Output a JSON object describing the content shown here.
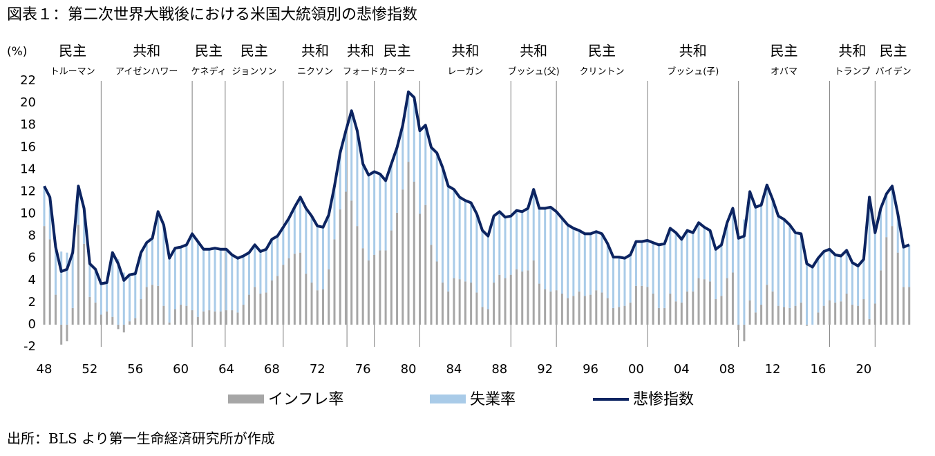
{
  "chart_data": {
    "type": "misery",
    "title": "図表１：第二次世界大戦後における米国大統領別の悲惨指数",
    "y_unit": "(%)",
    "source": "出所：BLS より第一生命経済研究所が作成",
    "xlim": [
      1948,
      2024.2
    ],
    "xticks": [
      {
        "value": 1948,
        "label": "48"
      },
      {
        "value": 1952,
        "label": "52"
      },
      {
        "value": 1956,
        "label": "56"
      },
      {
        "value": 1960,
        "label": "60"
      },
      {
        "value": 1964,
        "label": "64"
      },
      {
        "value": 1968,
        "label": "68"
      },
      {
        "value": 1972,
        "label": "72"
      },
      {
        "value": 1976,
        "label": "76"
      },
      {
        "value": 1980,
        "label": "80"
      },
      {
        "value": 1984,
        "label": "84"
      },
      {
        "value": 1988,
        "label": "88"
      },
      {
        "value": 1992,
        "label": "92"
      },
      {
        "value": 1996,
        "label": "96"
      },
      {
        "value": 2000,
        "label": "00"
      },
      {
        "value": 2004,
        "label": "04"
      },
      {
        "value": 2008,
        "label": "08"
      },
      {
        "value": 2012,
        "label": "12"
      },
      {
        "value": 2016,
        "label": "16"
      },
      {
        "value": 2020,
        "label": "20"
      }
    ],
    "ylim": [
      -2,
      22
    ],
    "yticks": [
      -2,
      0,
      2,
      4,
      6,
      8,
      10,
      12,
      14,
      16,
      18,
      20,
      22
    ],
    "presidents": [
      {
        "party": "民主",
        "name": "トルーマン",
        "start": 1948
      },
      {
        "party": "共和",
        "name": "アイゼンハワー",
        "start": 1953
      },
      {
        "party": "民主",
        "name": "ケネディ",
        "start": 1961
      },
      {
        "party": "民主",
        "name": "ジョンソン",
        "start": 1963.9
      },
      {
        "party": "共和",
        "name": "ニクソン",
        "start": 1969
      },
      {
        "party": "共和",
        "name": "フォード",
        "start": 1974.6
      },
      {
        "party": "民主",
        "name": "カーター",
        "start": 1977
      },
      {
        "party": "共和",
        "name": "レーガン",
        "start": 1981
      },
      {
        "party": "共和",
        "name": "ブッシュ(父)",
        "start": 1989
      },
      {
        "party": "民主",
        "name": "クリントン",
        "start": 1993
      },
      {
        "party": "共和",
        "name": "ブッシュ(子)",
        "start": 2001
      },
      {
        "party": "民主",
        "name": "オバマ",
        "start": 2009
      },
      {
        "party": "共和",
        "name": "トランプ",
        "start": 2017
      },
      {
        "party": "民主",
        "name": "バイデン",
        "start": 2021
      }
    ],
    "x": [
      1948,
      1948.5,
      1949,
      1949.5,
      1950,
      1950.5,
      1951,
      1951.5,
      1952,
      1952.5,
      1953,
      1953.5,
      1954,
      1954.5,
      1955,
      1955.5,
      1956,
      1956.5,
      1957,
      1957.5,
      1958,
      1958.5,
      1959,
      1959.5,
      1960,
      1960.5,
      1961,
      1961.5,
      1962,
      1962.5,
      1963,
      1963.5,
      1964,
      1964.5,
      1965,
      1965.5,
      1966,
      1966.5,
      1967,
      1967.5,
      1968,
      1968.5,
      1969,
      1969.5,
      1970,
      1970.5,
      1971,
      1971.5,
      1972,
      1972.5,
      1973,
      1973.5,
      1974,
      1974.5,
      1975,
      1975.5,
      1976,
      1976.5,
      1977,
      1977.5,
      1978,
      1978.5,
      1979,
      1979.5,
      1980,
      1980.5,
      1981,
      1981.5,
      1982,
      1982.5,
      1983,
      1983.5,
      1984,
      1984.5,
      1985,
      1985.5,
      1986,
      1986.5,
      1987,
      1987.5,
      1988,
      1988.5,
      1989,
      1989.5,
      1990,
      1990.5,
      1991,
      1991.5,
      1992,
      1992.5,
      1993,
      1993.5,
      1994,
      1994.5,
      1995,
      1995.5,
      1996,
      1996.5,
      1997,
      1997.5,
      1998,
      1998.5,
      1999,
      1999.5,
      2000,
      2000.5,
      2001,
      2001.5,
      2002,
      2002.5,
      2003,
      2003.5,
      2004,
      2004.5,
      2005,
      2005.5,
      2006,
      2006.5,
      2007,
      2007.5,
      2008,
      2008.5,
      2009,
      2009.5,
      2010,
      2010.5,
      2011,
      2011.5,
      2012,
      2012.5,
      2013,
      2013.5,
      2014,
      2014.5,
      2015,
      2015.5,
      2016,
      2016.5,
      2017,
      2017.5,
      2018,
      2018.5,
      2019,
      2019.5,
      2020,
      2020.5,
      2021,
      2021.5,
      2022,
      2022.5,
      2023,
      2023.5,
      2024
    ],
    "series": [
      {
        "name": "インフレ率",
        "color": "#a6a6a6",
        "values": [
          8.9,
          7.7,
          2.7,
          -1.8,
          -1.5,
          1.5,
          9.0,
          7.3,
          2.5,
          2.0,
          0.9,
          1.2,
          0.7,
          -0.4,
          -0.7,
          0.3,
          0.6,
          2.3,
          3.4,
          3.6,
          3.5,
          1.7,
          0.2,
          1.4,
          1.8,
          1.7,
          1.3,
          0.7,
          1.2,
          1.3,
          1.2,
          1.2,
          1.3,
          1.3,
          1.1,
          1.8,
          2.7,
          3.4,
          2.8,
          2.9,
          4.0,
          4.4,
          5.4,
          6.0,
          6.4,
          6.5,
          4.6,
          3.8,
          3.1,
          3.2,
          5.0,
          7.7,
          10.4,
          12.0,
          11.2,
          8.9,
          6.9,
          5.8,
          6.3,
          6.7,
          6.7,
          8.5,
          10.1,
          12.2,
          14.7,
          12.9,
          10.0,
          10.8,
          7.2,
          5.7,
          3.8,
          3.0,
          4.2,
          4.1,
          3.9,
          3.8,
          2.9,
          1.6,
          1.4,
          3.8,
          4.5,
          4.2,
          4.5,
          5.0,
          4.8,
          4.9,
          5.8,
          3.7,
          3.2,
          3.0,
          3.1,
          2.8,
          2.4,
          2.6,
          3.0,
          2.6,
          2.7,
          3.1,
          2.9,
          2.4,
          1.5,
          1.6,
          1.7,
          2.0,
          3.5,
          3.5,
          3.4,
          2.8,
          1.5,
          1.5,
          2.8,
          2.1,
          2.0,
          3.0,
          3.0,
          4.2,
          4.1,
          3.9,
          2.3,
          2.6,
          4.2,
          4.7,
          -0.5,
          -1.5,
          2.2,
          1.1,
          1.8,
          3.6,
          3.0,
          1.7,
          1.6,
          1.5,
          1.7,
          2.0,
          -0.1,
          0.0,
          1.1,
          1.7,
          2.2,
          2.0,
          2.1,
          2.8,
          1.8,
          1.7,
          2.3,
          0.5,
          1.9,
          4.9,
          7.9,
          8.9,
          6.5,
          3.4,
          3.4
        ]
      },
      {
        "name": "失業率",
        "color": "#a9cbe8",
        "values": [
          3.6,
          3.8,
          4.3,
          6.6,
          6.5,
          5.0,
          3.5,
          3.2,
          3.0,
          3.0,
          2.8,
          2.6,
          5.8,
          5.9,
          4.7,
          4.2,
          4.0,
          4.2,
          4.0,
          4.2,
          6.7,
          7.3,
          5.8,
          5.5,
          5.2,
          5.5,
          6.9,
          6.8,
          5.6,
          5.5,
          5.7,
          5.6,
          5.5,
          5.0,
          4.9,
          4.4,
          3.8,
          3.8,
          3.8,
          3.9,
          3.7,
          3.6,
          3.4,
          3.6,
          4.2,
          5.0,
          5.9,
          6.0,
          5.8,
          5.6,
          4.9,
          4.8,
          5.1,
          5.5,
          8.1,
          8.6,
          7.6,
          7.7,
          7.5,
          6.9,
          6.3,
          6.0,
          5.9,
          5.8,
          6.3,
          7.6,
          7.5,
          7.2,
          8.8,
          9.8,
          10.4,
          9.5,
          8.0,
          7.4,
          7.3,
          7.2,
          7.1,
          6.9,
          6.6,
          6.0,
          5.7,
          5.5,
          5.3,
          5.3,
          5.4,
          5.6,
          6.4,
          6.8,
          7.3,
          7.6,
          7.1,
          6.8,
          6.6,
          6.1,
          5.5,
          5.6,
          5.5,
          5.3,
          5.3,
          4.9,
          4.6,
          4.5,
          4.3,
          4.3,
          4.0,
          4.0,
          4.2,
          4.6,
          5.7,
          5.8,
          5.9,
          6.2,
          5.7,
          5.5,
          5.3,
          5.0,
          4.7,
          4.6,
          4.5,
          4.6,
          5.0,
          5.8,
          8.3,
          9.5,
          9.8,
          9.5,
          9.0,
          9.0,
          8.3,
          8.1,
          7.9,
          7.5,
          6.6,
          6.2,
          5.6,
          5.2,
          4.9,
          4.9,
          4.6,
          4.3,
          4.1,
          3.9,
          3.8,
          3.6,
          3.6,
          11.0,
          6.4,
          5.6,
          3.9,
          3.6,
          3.5,
          3.6,
          3.8
        ]
      },
      {
        "name": "悲惨指数",
        "color": "#0c2461",
        "values": [
          12.5,
          11.5,
          7.0,
          4.8,
          5.0,
          6.5,
          12.5,
          10.5,
          5.5,
          5.0,
          3.7,
          3.8,
          6.5,
          5.5,
          4.0,
          4.5,
          4.6,
          6.5,
          7.4,
          7.8,
          10.2,
          9.0,
          6.0,
          6.9,
          7.0,
          7.2,
          8.2,
          7.5,
          6.8,
          6.8,
          6.9,
          6.8,
          6.8,
          6.3,
          6.0,
          6.2,
          6.5,
          7.2,
          6.6,
          6.8,
          7.7,
          8.0,
          8.8,
          9.6,
          10.6,
          11.5,
          10.5,
          9.8,
          8.9,
          8.8,
          9.9,
          12.5,
          15.5,
          17.5,
          19.3,
          17.5,
          14.5,
          13.5,
          13.8,
          13.6,
          13.0,
          14.5,
          16.0,
          18.0,
          21.0,
          20.5,
          17.5,
          18.0,
          16.0,
          15.5,
          14.2,
          12.5,
          12.2,
          11.5,
          11.2,
          11.0,
          10.0,
          8.5,
          8.0,
          9.8,
          10.2,
          9.7,
          9.8,
          10.3,
          10.2,
          10.5,
          12.2,
          10.5,
          10.5,
          10.6,
          10.2,
          9.6,
          9.0,
          8.7,
          8.5,
          8.2,
          8.2,
          8.4,
          8.2,
          7.3,
          6.1,
          6.1,
          6.0,
          6.3,
          7.5,
          7.5,
          7.6,
          7.4,
          7.2,
          7.3,
          8.7,
          8.3,
          7.7,
          8.5,
          8.3,
          9.2,
          8.8,
          8.5,
          6.8,
          7.2,
          9.2,
          10.5,
          7.8,
          8.0,
          12.0,
          10.6,
          10.8,
          12.6,
          11.3,
          9.8,
          9.5,
          9.0,
          8.3,
          8.2,
          5.5,
          5.2,
          6.0,
          6.6,
          6.8,
          6.3,
          6.2,
          6.7,
          5.6,
          5.3,
          5.9,
          11.5,
          8.3,
          10.5,
          11.8,
          12.5,
          10.0,
          7.0,
          7.2
        ]
      }
    ]
  }
}
